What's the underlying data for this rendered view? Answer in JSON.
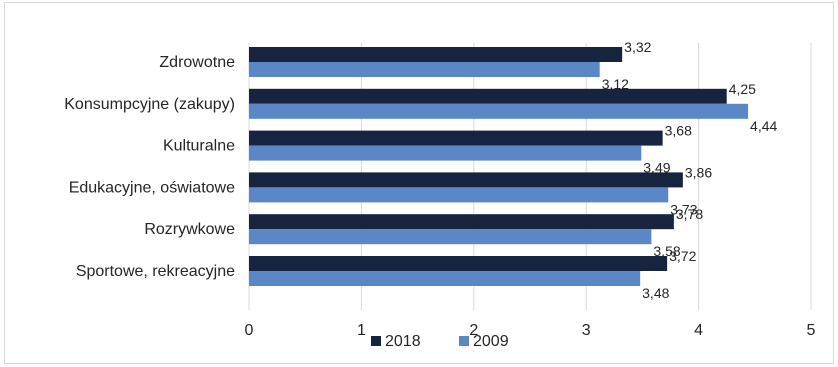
{
  "chart_data": {
    "type": "bar",
    "orientation": "horizontal",
    "categories": [
      "Zdrowotne",
      "Konsumpcyjne (zakupy)",
      "Kulturalne",
      "Edukacyjne, oświatowe",
      "Rozrywkowe",
      "Sportowe, rekreacyjne"
    ],
    "series": [
      {
        "name": "2018",
        "color": "#17243f",
        "values": [
          3.32,
          4.25,
          3.68,
          3.86,
          3.78,
          3.72
        ],
        "labels": [
          "3,32",
          "4,25",
          "3,68",
          "3,86",
          "3,78",
          "3,72"
        ]
      },
      {
        "name": "2009",
        "color": "#5b87c7",
        "values": [
          3.12,
          4.44,
          3.49,
          3.73,
          3.58,
          3.48
        ],
        "labels": [
          "3,12",
          "4,44",
          "3,49",
          "3,73",
          "3,58",
          "3,48"
        ]
      }
    ],
    "xlim": [
      0,
      5
    ],
    "xticks": [
      0,
      1,
      2,
      3,
      4,
      5
    ],
    "xtick_labels": [
      "0",
      "1",
      "2",
      "3",
      "4",
      "5"
    ],
    "grid": "vertical",
    "gridline_color": "#d9d9d9",
    "legend": "bottom",
    "title": "",
    "xlabel": "",
    "ylabel": ""
  }
}
